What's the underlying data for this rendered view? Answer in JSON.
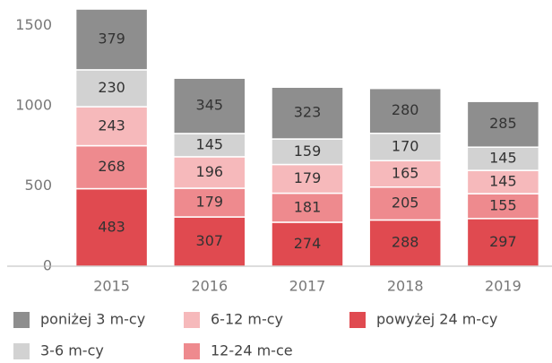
{
  "chart_data": {
    "type": "stacked_bar",
    "categories": [
      "2015",
      "2016",
      "2017",
      "2018",
      "2019"
    ],
    "series": [
      {
        "name": "powyżej 24 m-cy",
        "color": "#e04a50",
        "values": [
          483,
          307,
          274,
          288,
          297
        ]
      },
      {
        "name": "12-24 m-ce",
        "color": "#ee8a8e",
        "values": [
          268,
          179,
          181,
          205,
          155
        ]
      },
      {
        "name": "6-12 m-cy",
        "color": "#f6b9bb",
        "values": [
          243,
          196,
          179,
          165,
          145
        ]
      },
      {
        "name": "3-6 m-cy",
        "color": "#d2d2d2",
        "values": [
          230,
          145,
          159,
          170,
          145
        ]
      },
      {
        "name": "poniżej 3 m-cy",
        "color": "#8e8e8e",
        "values": [
          379,
          345,
          323,
          280,
          285
        ]
      }
    ],
    "ylim": [
      0,
      1600
    ],
    "yticks": [
      0,
      500,
      1000,
      1500
    ],
    "grid": false
  }
}
